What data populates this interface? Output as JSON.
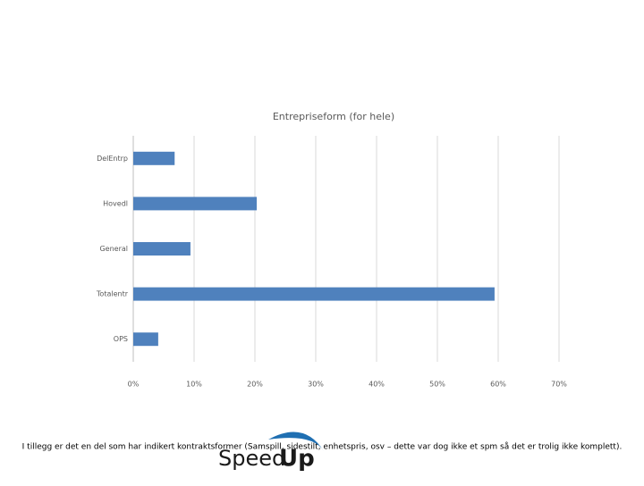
{
  "chart_data": {
    "type": "bar",
    "orientation": "horizontal",
    "title": "Entrepriseform (for hele)",
    "categories": [
      "DelEntrp",
      "Hovedl",
      "General",
      "Totalentr",
      "OPS"
    ],
    "values": [
      6.8,
      20.3,
      9.4,
      59.4,
      4.1
    ],
    "color": "#4f81bd",
    "xlim": [
      0,
      70
    ],
    "xticks": [
      {
        "value": 0,
        "label": "0%"
      },
      {
        "value": 10,
        "label": "10%"
      },
      {
        "value": 20,
        "label": "20%"
      },
      {
        "value": 30,
        "label": "30%"
      },
      {
        "value": 40,
        "label": "40%"
      },
      {
        "value": 50,
        "label": "50%"
      },
      {
        "value": 60,
        "label": "60%"
      },
      {
        "value": 70,
        "label": "70%"
      }
    ],
    "grid": true
  },
  "footer": {
    "note": "I tillegg er det en del som har indikert kontraktsformer (Samspill, sidestilt, enhetspris, osv – dette var dog ikke et spm så det er trolig ikke komplett).",
    "logo": {
      "part1": "Speed",
      "part2": "Up"
    }
  }
}
